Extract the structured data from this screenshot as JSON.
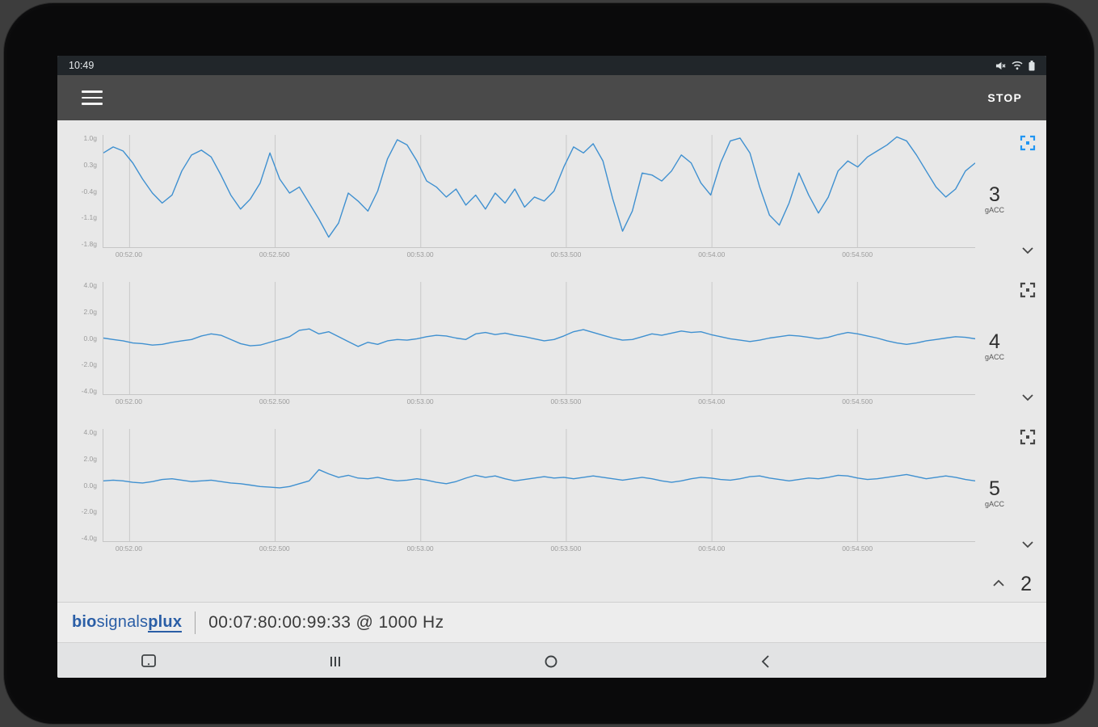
{
  "colors": {
    "accent": "#2196F3",
    "line": "#3F90D0"
  },
  "statusbar": {
    "time": "10:49",
    "icons": [
      "mute-icon",
      "wifi-icon",
      "battery-icon"
    ]
  },
  "toolbar": {
    "menu_icon": "hamburger-icon",
    "stop_label": "STOP"
  },
  "chart_data": {
    "type": "line",
    "x_ticks": [
      "00:52.00",
      "00:52.500",
      "00:53.00",
      "00:53.500",
      "00:54.00",
      "00:54.500"
    ],
    "grid": true,
    "charts": [
      {
        "channel": "3",
        "unit": "gACC",
        "yticks": [
          "1.0g",
          "0.3g",
          "-0.4g",
          "-1.1g",
          "-1.8g"
        ],
        "ylim": [
          -1.8,
          1.0
        ],
        "fullscreen_active": true,
        "samples": [
          0.55,
          0.7,
          0.6,
          0.3,
          -0.1,
          -0.45,
          -0.7,
          -0.5,
          0.1,
          0.5,
          0.62,
          0.45,
          0.0,
          -0.5,
          -0.85,
          -0.6,
          -0.2,
          0.55,
          -0.1,
          -0.45,
          -0.3,
          -0.7,
          -1.1,
          -1.55,
          -1.2,
          -0.45,
          -0.65,
          -0.9,
          -0.4,
          0.4,
          0.88,
          0.75,
          0.35,
          -0.15,
          -0.3,
          -0.55,
          -0.35,
          -0.75,
          -0.5,
          -0.85,
          -0.45,
          -0.7,
          -0.35,
          -0.8,
          -0.55,
          -0.65,
          -0.4,
          0.2,
          0.7,
          0.55,
          0.78,
          0.35,
          -0.6,
          -1.4,
          -0.9,
          0.05,
          0.0,
          -0.15,
          0.1,
          0.5,
          0.3,
          -0.2,
          -0.5,
          0.3,
          0.85,
          0.92,
          0.55,
          -0.3,
          -1.0,
          -1.25,
          -0.7,
          0.05,
          -0.5,
          -0.95,
          -0.55,
          0.1,
          0.35,
          0.2,
          0.45,
          0.6,
          0.75,
          0.95,
          0.85,
          0.5,
          0.1,
          -0.3,
          -0.55,
          -0.35,
          0.1,
          0.3
        ]
      },
      {
        "channel": "4",
        "unit": "gACC",
        "yticks": [
          "4.0g",
          "2.0g",
          "0.0g",
          "-2.0g",
          "-4.0g"
        ],
        "ylim": [
          -4.0,
          4.0
        ],
        "fullscreen_active": false,
        "samples": [
          0.0,
          -0.1,
          -0.2,
          -0.35,
          -0.4,
          -0.5,
          -0.45,
          -0.3,
          -0.2,
          -0.1,
          0.15,
          0.3,
          0.2,
          -0.1,
          -0.4,
          -0.55,
          -0.5,
          -0.3,
          -0.1,
          0.1,
          0.55,
          0.65,
          0.3,
          0.45,
          0.1,
          -0.25,
          -0.6,
          -0.3,
          -0.45,
          -0.2,
          -0.1,
          -0.15,
          -0.05,
          0.1,
          0.2,
          0.15,
          0.0,
          -0.1,
          0.3,
          0.4,
          0.25,
          0.35,
          0.2,
          0.1,
          -0.05,
          -0.2,
          -0.1,
          0.15,
          0.45,
          0.6,
          0.4,
          0.2,
          0.0,
          -0.15,
          -0.1,
          0.1,
          0.3,
          0.2,
          0.35,
          0.5,
          0.4,
          0.45,
          0.25,
          0.1,
          -0.05,
          -0.15,
          -0.25,
          -0.15,
          0.0,
          0.1,
          0.2,
          0.15,
          0.05,
          -0.05,
          0.05,
          0.25,
          0.4,
          0.3,
          0.15,
          0.0,
          -0.2,
          -0.35,
          -0.45,
          -0.35,
          -0.2,
          -0.1,
          0.0,
          0.1,
          0.05,
          -0.05
        ]
      },
      {
        "channel": "5",
        "unit": "gACC",
        "yticks": [
          "4.0g",
          "2.0g",
          "0.0g",
          "-2.0g",
          "-4.0g"
        ],
        "ylim": [
          -4.0,
          4.0
        ],
        "fullscreen_active": false,
        "samples": [
          0.3,
          0.35,
          0.3,
          0.2,
          0.15,
          0.25,
          0.4,
          0.45,
          0.35,
          0.25,
          0.3,
          0.35,
          0.25,
          0.15,
          0.1,
          0.0,
          -0.1,
          -0.15,
          -0.2,
          -0.1,
          0.1,
          0.3,
          1.1,
          0.8,
          0.55,
          0.7,
          0.5,
          0.45,
          0.55,
          0.4,
          0.3,
          0.35,
          0.45,
          0.35,
          0.2,
          0.1,
          0.25,
          0.5,
          0.7,
          0.55,
          0.65,
          0.45,
          0.3,
          0.4,
          0.5,
          0.6,
          0.5,
          0.55,
          0.45,
          0.55,
          0.65,
          0.55,
          0.45,
          0.35,
          0.45,
          0.55,
          0.45,
          0.3,
          0.2,
          0.3,
          0.45,
          0.55,
          0.5,
          0.4,
          0.35,
          0.45,
          0.6,
          0.65,
          0.5,
          0.4,
          0.3,
          0.4,
          0.5,
          0.45,
          0.55,
          0.7,
          0.65,
          0.5,
          0.4,
          0.45,
          0.55,
          0.65,
          0.75,
          0.6,
          0.45,
          0.55,
          0.65,
          0.55,
          0.4,
          0.3
        ]
      }
    ]
  },
  "collapsed": {
    "channel": "2"
  },
  "footer": {
    "logo_part1": "bio",
    "logo_part2": "signals",
    "logo_part3": "plux",
    "timestamp": "00:07:80:00:99:33 @ 1000 Hz"
  },
  "navbar": {
    "icons": [
      "screenshot-icon",
      "recents-icon",
      "home-icon",
      "back-icon"
    ]
  }
}
